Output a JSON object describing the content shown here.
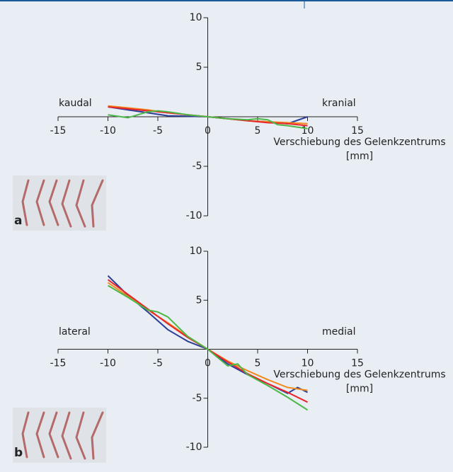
{
  "chart_data": [
    {
      "type": "line",
      "panel_label": "a",
      "annotations": [
        "kaudal",
        "kranial"
      ],
      "xlabel": [
        "Verschiebung des Gelenkzentrums",
        "[mm]"
      ],
      "xlim": [
        -15,
        15
      ],
      "ylim": [
        -10,
        10
      ],
      "xticks": [
        -15,
        -10,
        -5,
        0,
        5,
        10,
        15
      ],
      "yticks": [
        -10,
        -5,
        0,
        5,
        10
      ],
      "series": [
        {
          "color": "#2b3f99",
          "x": [
            -10,
            -8,
            -6,
            -4,
            -2,
            0,
            2,
            4,
            6,
            8,
            10
          ],
          "values": [
            1.0,
            0.7,
            0.4,
            0.1,
            0.05,
            0,
            -0.2,
            -0.4,
            -0.5,
            -0.7,
            0
          ]
        },
        {
          "color": "#f08a1e",
          "x": [
            -10,
            -8,
            -6,
            -4,
            -2,
            0,
            2,
            4,
            6,
            8,
            10
          ],
          "values": [
            1.1,
            0.9,
            0.7,
            0.4,
            0.2,
            0,
            -0.2,
            -0.4,
            -0.5,
            -0.6,
            -0.7
          ]
        },
        {
          "color": "#e8262b",
          "x": [
            -10,
            -8,
            -6,
            -4,
            -2,
            0,
            2,
            4,
            6,
            8,
            10
          ],
          "values": [
            1.0,
            0.8,
            0.6,
            0.4,
            0.2,
            0,
            -0.2,
            -0.4,
            -0.6,
            -0.7,
            -0.9
          ]
        },
        {
          "color": "#4cb848",
          "x": [
            -10,
            -8,
            -6,
            -5,
            -4,
            -2,
            0,
            2,
            4,
            5,
            6,
            7,
            8,
            10
          ],
          "values": [
            0.2,
            -0.1,
            0.5,
            0.6,
            0.5,
            0.2,
            0,
            -0.2,
            -0.3,
            -0.2,
            -0.3,
            -0.8,
            -0.9,
            -1.2
          ]
        }
      ]
    },
    {
      "type": "line",
      "panel_label": "b",
      "annotations": [
        "lateral",
        "medial"
      ],
      "xlabel": [
        "Verschiebung des Gelenkzentrums",
        "[mm]"
      ],
      "xlim": [
        -15,
        15
      ],
      "ylim": [
        -10,
        10
      ],
      "xticks": [
        -15,
        -10,
        -5,
        0,
        5,
        10,
        15
      ],
      "yticks": [
        -10,
        -5,
        0,
        5,
        10
      ],
      "series": [
        {
          "color": "#2b3f99",
          "x": [
            -10,
            -8,
            -6,
            -4,
            -2,
            0,
            2,
            4,
            6,
            8,
            9,
            10
          ],
          "values": [
            7.5,
            5.5,
            3.8,
            2.0,
            0.8,
            0,
            -1.5,
            -2.6,
            -3.5,
            -4.5,
            -3.9,
            -4.4
          ]
        },
        {
          "color": "#f08a1e",
          "x": [
            -10,
            -8,
            -6,
            -4,
            -2,
            0,
            2,
            4,
            6,
            8,
            10
          ],
          "values": [
            6.8,
            5.4,
            4.0,
            2.7,
            1.3,
            0,
            -1.2,
            -2.2,
            -3.1,
            -3.9,
            -4.2
          ]
        },
        {
          "color": "#e8262b",
          "x": [
            -10,
            -8,
            -6,
            -4,
            -2,
            0,
            2,
            4,
            6,
            8,
            10
          ],
          "values": [
            7.1,
            5.6,
            4.1,
            2.6,
            1.2,
            0,
            -1.3,
            -2.5,
            -3.5,
            -4.4,
            -5.4
          ]
        },
        {
          "color": "#4cb848",
          "x": [
            -10,
            -8,
            -6,
            -5,
            -4,
            -2,
            0,
            2,
            3,
            4,
            6,
            8,
            10
          ],
          "values": [
            6.5,
            5.3,
            4.0,
            3.8,
            3.3,
            1.3,
            0,
            -1.7,
            -1.5,
            -2.6,
            -3.7,
            -4.9,
            -6.2
          ]
        }
      ]
    }
  ]
}
